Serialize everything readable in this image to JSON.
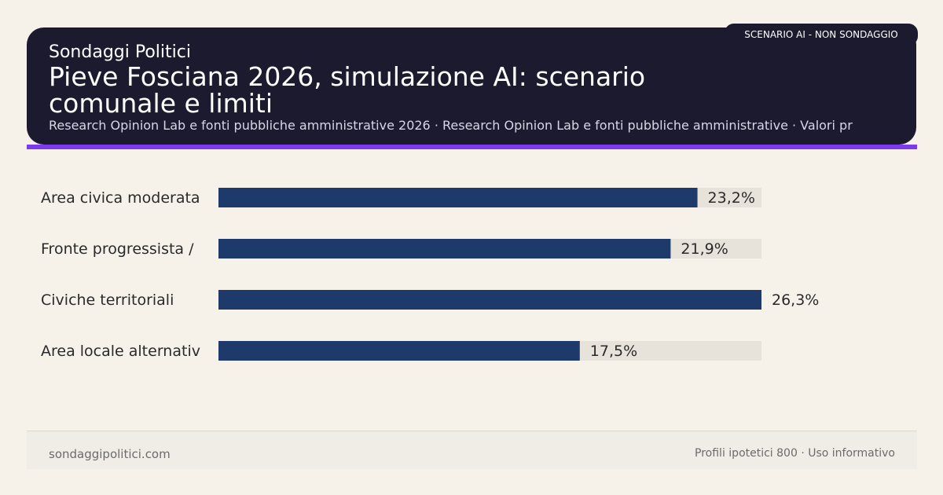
{
  "header": {
    "brand": "Sondaggi Politici",
    "title": "Pieve Fosciana 2026, simulazione AI: scenario comunale e limiti",
    "subtitle": "Research Opinion Lab e fonti pubbliche amministrative 2026 · Research Opinion Lab e fonti pubbliche amministrative · Valori pr",
    "badge": "SCENARIO AI - NON SONDAGGIO"
  },
  "footer": {
    "site": "sondaggipolitici.com",
    "note": "Profili ipotetici 800 · Uso informativo"
  },
  "colors": {
    "bar": "#1e3a6b",
    "track": "#e8e3da",
    "header_bg": "#1b1a2e",
    "accent": "#7c3aed"
  },
  "chart_data": {
    "type": "bar",
    "orientation": "horizontal",
    "categories": [
      "Area civica moderata",
      "Fronte progressista /",
      "Civiche territoriali",
      "Area locale alternativ"
    ],
    "values": [
      23.2,
      21.9,
      26.3,
      17.5
    ],
    "value_labels": [
      "23,2%",
      "21,9%",
      "26,3%",
      "17,5%"
    ],
    "xlim": [
      0,
      26.3
    ],
    "grid": false,
    "legend": "none"
  }
}
